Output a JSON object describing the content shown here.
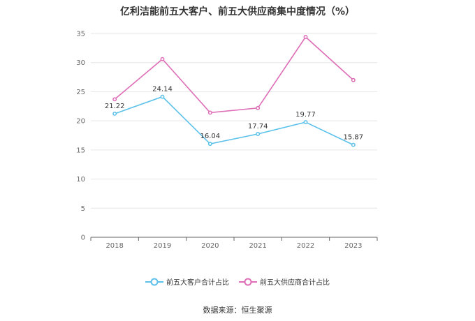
{
  "chart_data": {
    "type": "line",
    "title": "亿利洁能前五大客户、前五大供应商集中度情况（%）",
    "categories": [
      "2018",
      "2019",
      "2020",
      "2021",
      "2022",
      "2023"
    ],
    "ylim": [
      0,
      35
    ],
    "yticks": [
      0,
      5,
      10,
      15,
      20,
      25,
      30,
      35
    ],
    "grid": true,
    "legend_position": "bottom",
    "series": [
      {
        "name": "前五大客户合计占比",
        "color": "#5bc1ea",
        "values": [
          21.22,
          24.14,
          16.04,
          17.74,
          19.77,
          15.87
        ],
        "labels": [
          "21.22",
          "24.14",
          "16.04",
          "17.74",
          "19.77",
          "15.87"
        ]
      },
      {
        "name": "前五大供应商合计占比",
        "color": "#dd6eb7",
        "values": [
          23.7,
          30.6,
          21.4,
          22.2,
          34.4,
          27.0
        ]
      }
    ]
  },
  "footer": {
    "source": "数据来源：恒生聚源"
  }
}
